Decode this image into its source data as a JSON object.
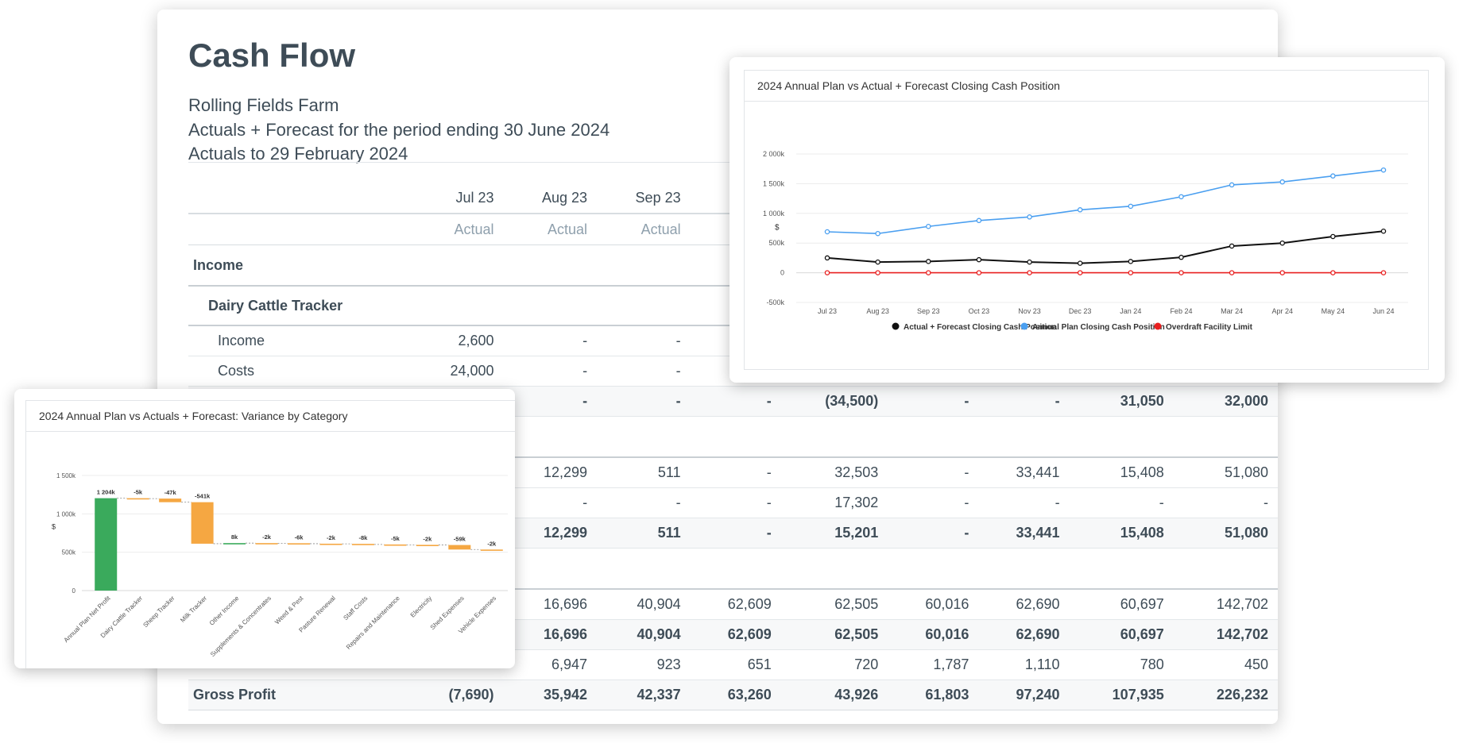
{
  "report": {
    "title": "Cash Flow",
    "subtitle_1": "Rolling Fields Farm",
    "subtitle_2": "Actuals + Forecast for the period ending 30 June 2024",
    "subtitle_3": "Actuals to 29 February 2024",
    "columns": [
      "Jul 23",
      "Aug 23",
      "Sep 23",
      "",
      "",
      "",
      "",
      "",
      ""
    ],
    "column_types": [
      "Actual",
      "Actual",
      "Actual",
      "",
      "",
      "",
      "",
      "",
      ""
    ],
    "rows": [
      {
        "kind": "sec",
        "label": "Income",
        "values": [
          "",
          "",
          "",
          "",
          "",
          "",
          "",
          "",
          ""
        ]
      },
      {
        "kind": "grp",
        "label": "Dairy Cattle Tracker",
        "values": [
          "",
          "",
          "",
          "",
          "",
          "",
          "",
          "",
          ""
        ]
      },
      {
        "kind": "row",
        "label": "Income",
        "values": [
          "2,600",
          "-",
          "-",
          "",
          "",
          "",
          "",
          "",
          ""
        ]
      },
      {
        "kind": "row",
        "label": "Costs",
        "values": [
          "24,000",
          "-",
          "-",
          "",
          "",
          "",
          "",
          "",
          ""
        ]
      },
      {
        "kind": "tot",
        "label": "",
        "values": [
          ")",
          "-",
          "-",
          "-",
          "(34,500)",
          "-",
          "-",
          "31,050",
          "32,000"
        ]
      },
      {
        "kind": "gap",
        "label": "",
        "values": [
          "",
          "",
          "",
          "",
          "",
          "",
          "",
          "",
          ""
        ]
      },
      {
        "kind": "row",
        "label": "",
        "values": [
          ")",
          "12,299",
          "511",
          "-",
          "32,503",
          "-",
          "33,441",
          "15,408",
          "51,080"
        ]
      },
      {
        "kind": "row",
        "label": "",
        "values": [
          "-",
          "-",
          "-",
          "-",
          "17,302",
          "-",
          "-",
          "-",
          "-"
        ]
      },
      {
        "kind": "tot",
        "label": "",
        "values": [
          ")",
          "12,299",
          "511",
          "-",
          "15,201",
          "-",
          "33,441",
          "15,408",
          "51,080"
        ]
      },
      {
        "kind": "gap",
        "label": "",
        "values": [
          "",
          "",
          "",
          "",
          "",
          "",
          "",
          "",
          ""
        ]
      },
      {
        "kind": "row",
        "label": "",
        "values": [
          "-",
          "16,696",
          "40,904",
          "62,609",
          "62,505",
          "60,016",
          "62,690",
          "60,697",
          "142,702"
        ]
      },
      {
        "kind": "tot",
        "label": "",
        "values": [
          "-",
          "16,696",
          "40,904",
          "62,609",
          "62,505",
          "60,016",
          "62,690",
          "60,697",
          "142,702"
        ]
      },
      {
        "kind": "row",
        "label": "",
        "values": [
          "-",
          "6,947",
          "923",
          "651",
          "720",
          "1,787",
          "1,110",
          "780",
          "450"
        ]
      },
      {
        "kind": "gp",
        "label": "Gross Profit",
        "values": [
          "(7,690)",
          "35,942",
          "42,337",
          "63,260",
          "43,926",
          "61,803",
          "97,240",
          "107,935",
          "226,232"
        ]
      }
    ]
  },
  "chart_data": [
    {
      "type": "line",
      "title": "2024 Annual Plan vs Actual + Forecast Closing Cash Position",
      "ylabel": "$",
      "ylim": [
        -500000,
        2000000
      ],
      "yticks": [
        "2 000k",
        "1 500k",
        "1 000k",
        "500k",
        "0",
        "-500k"
      ],
      "categories": [
        "Jul 23",
        "Aug 23",
        "Sep 23",
        "Oct 23",
        "Nov 23",
        "Dec 23",
        "Jan 24",
        "Feb 24",
        "Mar 24",
        "Apr 24",
        "May 24",
        "Jun 24"
      ],
      "grid": true,
      "legend_position": "bottom",
      "series": [
        {
          "name": "Actual + Forecast Closing Cash Position",
          "color": "#111111",
          "values": [
            250000,
            180000,
            190000,
            220000,
            180000,
            160000,
            190000,
            260000,
            450000,
            500000,
            610000,
            700000
          ]
        },
        {
          "name": "Annual Plan Closing Cash Position",
          "color": "#4a9ff0",
          "values": [
            690000,
            660000,
            780000,
            880000,
            940000,
            1060000,
            1120000,
            1280000,
            1480000,
            1530000,
            1630000,
            1730000
          ]
        },
        {
          "name": "Overdraft Facility Limit",
          "color": "#e82020",
          "values": [
            0,
            0,
            0,
            0,
            0,
            0,
            0,
            0,
            0,
            0,
            0,
            0
          ]
        }
      ]
    },
    {
      "type": "bar",
      "subtype": "waterfall",
      "title": "2024 Annual Plan vs Actuals + Forecast: Variance by Category",
      "ylabel": "$",
      "ylim": [
        0,
        1500000
      ],
      "yticks": [
        "1 500k",
        "1 000k",
        "500k",
        "0"
      ],
      "categories": [
        "Annual Plan Net Profit",
        "Dairy Cattle Tracker",
        "Sheep Tracker",
        "Milk Tracker",
        "Other Income",
        "Supplements & Concentrates",
        "Weed & Pest",
        "Pasture Renewal",
        "Staff Costs",
        "Repairs and Maintenance",
        "Electricity",
        "Shed Expenses",
        "Vehicle Expenses"
      ],
      "values": [
        1204000,
        -5000,
        -47000,
        -541000,
        8000,
        -2000,
        -6000,
        -2000,
        -8000,
        -5000,
        -2000,
        -59000,
        -2000
      ],
      "data_labels": [
        "1 204k",
        "-5k",
        "-47k",
        "-541k",
        "8k",
        "-2k",
        "-6k",
        "-2k",
        "-8k",
        "-5k",
        "-2k",
        "-59k",
        "-2k"
      ],
      "colors": {
        "total": "#3aaa5c",
        "increase": "#3aaa5c",
        "decrease": "#f5a742"
      }
    }
  ]
}
